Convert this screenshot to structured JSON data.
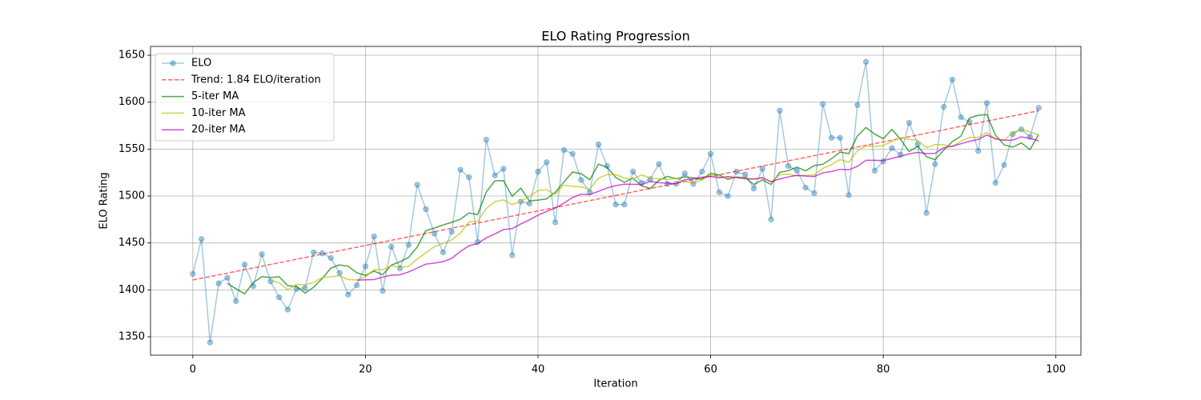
{
  "chart_data": {
    "type": "line",
    "title": "ELO Rating Progression",
    "x_label": "Iteration",
    "y_label": "ELO Rating",
    "xlim": [
      -4.9,
      102.9
    ],
    "ylim": [
      1330.4,
      1659.4
    ],
    "xticks": [
      0,
      20,
      40,
      60,
      80,
      100
    ],
    "yticks": [
      1350,
      1400,
      1450,
      1500,
      1550,
      1600,
      1650
    ],
    "grid": true,
    "legend": "upper left",
    "x": [
      0,
      1,
      2,
      3,
      4,
      5,
      6,
      7,
      8,
      9,
      10,
      11,
      12,
      13,
      14,
      15,
      16,
      17,
      18,
      19,
      20,
      21,
      22,
      23,
      24,
      25,
      26,
      27,
      28,
      29,
      30,
      31,
      32,
      33,
      34,
      35,
      36,
      37,
      38,
      39,
      40,
      41,
      42,
      43,
      44,
      45,
      46,
      47,
      48,
      49,
      50,
      51,
      52,
      53,
      54,
      55,
      56,
      57,
      58,
      59,
      60,
      61,
      62,
      63,
      64,
      65,
      66,
      67,
      68,
      69,
      70,
      71,
      72,
      73,
      74,
      75,
      76,
      77,
      78,
      79,
      80,
      81,
      82,
      83,
      84,
      85,
      86,
      87,
      88,
      89,
      90,
      91,
      92,
      93,
      94,
      95,
      96,
      97,
      98
    ],
    "series": [
      {
        "name": "ELO",
        "color": "#1f77b4",
        "opacity": 0.4,
        "marker": "o",
        "dash": false,
        "values": [
          1417,
          1454,
          1344,
          1407,
          1413,
          1388,
          1427,
          1404,
          1438,
          1409,
          1392,
          1379,
          1401,
          1402,
          1440,
          1439,
          1434,
          1418,
          1395,
          1405,
          1425,
          1457,
          1399,
          1446,
          1423,
          1448,
          1512,
          1486,
          1460,
          1440,
          1462,
          1528,
          1520,
          1451,
          1560,
          1522,
          1529,
          1437,
          1494,
          1492,
          1526,
          1536,
          1472,
          1549,
          1545,
          1517,
          1504,
          1555,
          1532,
          1491,
          1491,
          1526,
          1514,
          1518,
          1534,
          1513,
          1513,
          1524,
          1513,
          1526,
          1545,
          1504,
          1500,
          1526,
          1523,
          1508,
          1529,
          1475,
          1591,
          1532,
          1527,
          1509,
          1503,
          1598,
          1562,
          1562,
          1501,
          1597,
          1643,
          1527,
          1537,
          1551,
          1544,
          1578,
          1555,
          1482,
          1534,
          1595,
          1624,
          1584,
          1579,
          1548,
          1599,
          1514,
          1533,
          1566,
          1571,
          1563,
          1594
        ]
      },
      {
        "name": "Trend: 1.84 ELO/iteration",
        "color": "#ff0000",
        "opacity": 0.6,
        "dash": true,
        "x": [
          0,
          98
        ],
        "values": [
          1410.5,
          1590.8
        ]
      },
      {
        "name": "5-iter MA",
        "color": "#008000",
        "opacity": 0.7,
        "dash": false,
        "values": [
          null,
          null,
          null,
          null,
          1407.0,
          1401.2,
          1395.8,
          1407.8,
          1414.0,
          1413.2,
          1414.0,
          1404.4,
          1403.8,
          1396.6,
          1402.8,
          1412.2,
          1423.2,
          1426.6,
          1425.2,
          1418.2,
          1415.4,
          1420.0,
          1416.2,
          1426.4,
          1430.0,
          1434.6,
          1445.6,
          1463.0,
          1465.8,
          1469.2,
          1472.0,
          1475.2,
          1482.0,
          1480.2,
          1504.2,
          1516.2,
          1516.4,
          1499.8,
          1508.4,
          1494.8,
          1495.6,
          1497.0,
          1504.0,
          1515.0,
          1525.6,
          1523.8,
          1517.4,
          1534.0,
          1530.6,
          1519.8,
          1514.6,
          1519.0,
          1510.8,
          1508.0,
          1516.6,
          1521.0,
          1518.4,
          1520.4,
          1519.4,
          1517.8,
          1524.2,
          1522.4,
          1517.6,
          1520.2,
          1519.6,
          1512.2,
          1517.2,
          1512.2,
          1525.2,
          1527.0,
          1530.8,
          1526.8,
          1532.4,
          1533.8,
          1539.8,
          1546.8,
          1545.2,
          1564.0,
          1573.0,
          1566.0,
          1561.0,
          1571.0,
          1560.4,
          1547.4,
          1553.0,
          1542.0,
          1538.6,
          1548.8,
          1558.0,
          1563.8,
          1583.2,
          1586.0,
          1586.8,
          1564.8,
          1554.6,
          1552.0,
          1556.6,
          1549.4,
          1565.4
        ]
      },
      {
        "name": "10-iter MA",
        "color": "#bfbf00",
        "opacity": 0.7,
        "dash": false,
        "values": [
          null,
          null,
          null,
          null,
          null,
          null,
          null,
          null,
          null,
          1410.1,
          1407.6,
          1400.1,
          1405.8,
          1405.3,
          1408.0,
          1413.1,
          1413.8,
          1415.2,
          1410.9,
          1410.5,
          1413.8,
          1421.6,
          1421.4,
          1425.8,
          1424.1,
          1425.0,
          1432.8,
          1439.6,
          1446.1,
          1449.6,
          1453.3,
          1460.4,
          1472.5,
          1473.0,
          1486.7,
          1494.1,
          1495.8,
          1490.9,
          1494.3,
          1499.5,
          1505.9,
          1506.7,
          1501.9,
          1511.7,
          1510.2,
          1509.7,
          1507.2,
          1519.0,
          1522.8,
          1522.7,
          1519.2,
          1518.2,
          1522.4,
          1519.3,
          1518.2,
          1517.8,
          1518.7,
          1515.6,
          1513.7,
          1517.2,
          1522.6,
          1520.4,
          1519.0,
          1519.8,
          1518.7,
          1518.2,
          1519.8,
          1514.9,
          1522.7,
          1523.3,
          1521.5,
          1522.0,
          1522.3,
          1529.5,
          1533.4,
          1538.8,
          1536.0,
          1548.2,
          1553.4,
          1552.9,
          1553.9,
          1558.1,
          1562.2,
          1560.2,
          1559.5,
          1551.5,
          1554.8,
          1554.6,
          1552.7,
          1558.4,
          1562.6,
          1562.3,
          1567.8,
          1561.4,
          1559.2,
          1567.6,
          1571.3,
          1568.1,
          1565.1
        ]
      },
      {
        "name": "20-iter MA",
        "color": "#bf00bf",
        "opacity": 0.7,
        "dash": false,
        "values": [
          null,
          null,
          null,
          null,
          null,
          null,
          null,
          null,
          null,
          null,
          null,
          null,
          null,
          null,
          null,
          null,
          null,
          null,
          null,
          1410.3,
          1410.7,
          1410.9,
          1413.6,
          1415.6,
          1416.1,
          1419.1,
          1423.3,
          1427.4,
          1428.5,
          1430.1,
          1433.6,
          1441.0,
          1447.0,
          1449.4,
          1455.4,
          1459.6,
          1464.3,
          1465.3,
          1470.2,
          1474.6,
          1479.6,
          1483.6,
          1487.2,
          1492.4,
          1498.5,
          1501.9,
          1501.5,
          1505.0,
          1508.6,
          1511.1,
          1512.6,
          1512.5,
          1512.2,
          1515.5,
          1514.2,
          1513.8,
          1513.0,
          1517.3,
          1518.3,
          1520.0,
          1520.9,
          1519.3,
          1520.7,
          1519.6,
          1518.5,
          1518.0,
          1519.3,
          1515.3,
          1518.2,
          1520.3,
          1522.1,
          1521.2,
          1520.7,
          1524.7,
          1526.1,
          1528.5,
          1527.9,
          1531.6,
          1538.1,
          1538.1,
          1537.7,
          1540.1,
          1542.3,
          1544.9,
          1546.5,
          1545.2,
          1545.4,
          1551.4,
          1553.1,
          1555.7,
          1558.3,
          1560.2,
          1565.0,
          1560.8,
          1559.4,
          1559.6,
          1563.1,
          1561.4,
          1558.9
        ]
      }
    ]
  }
}
